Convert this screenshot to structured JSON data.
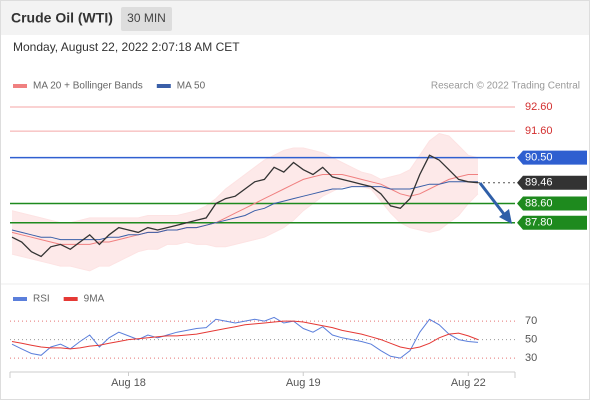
{
  "header": {
    "title": "Crude Oil (WTI)",
    "timeframe": "30 MIN"
  },
  "timestamp": "Monday, August 22, 2022 2:07:18 AM CET",
  "credit": "Research © 2022 Trading Central",
  "chart_data": [
    {
      "type": "line",
      "ylim": [
        85.3,
        93.1
      ],
      "price": {
        "color": "#333333",
        "values": [
          87.2,
          87.0,
          86.6,
          86.4,
          86.8,
          86.9,
          86.7,
          87.0,
          87.3,
          86.9,
          87.3,
          87.6,
          87.5,
          87.4,
          87.6,
          87.5,
          87.6,
          87.7,
          87.8,
          87.9,
          88.0,
          88.6,
          88.8,
          88.9,
          89.2,
          89.5,
          89.6,
          90.1,
          89.9,
          90.3,
          90.0,
          89.8,
          90.1,
          89.7,
          89.6,
          89.5,
          89.4,
          89.3,
          89.0,
          88.5,
          88.4,
          88.8,
          89.8,
          90.6,
          90.4,
          90.0,
          89.6,
          89.5,
          89.46
        ]
      },
      "series": [
        {
          "name": "MA 20 + Bollinger Bands",
          "color": "#f08080",
          "values": [
            87.4,
            87.3,
            87.2,
            87.1,
            87.0,
            86.9,
            86.9,
            86.9,
            86.9,
            87.0,
            87.0,
            87.1,
            87.2,
            87.3,
            87.4,
            87.4,
            87.5,
            87.5,
            87.6,
            87.6,
            87.7,
            87.8,
            88.0,
            88.2,
            88.4,
            88.6,
            88.8,
            89.0,
            89.2,
            89.4,
            89.6,
            89.7,
            89.8,
            89.8,
            89.8,
            89.7,
            89.6,
            89.5,
            89.4,
            89.2,
            89.0,
            88.9,
            89.0,
            89.2,
            89.4,
            89.6,
            89.7,
            89.8,
            89.8
          ]
        },
        {
          "name": "MA 50",
          "color": "#3a5fa8",
          "values": [
            87.5,
            87.4,
            87.3,
            87.2,
            87.2,
            87.1,
            87.1,
            87.1,
            87.1,
            87.1,
            87.2,
            87.2,
            87.3,
            87.3,
            87.4,
            87.4,
            87.5,
            87.5,
            87.6,
            87.6,
            87.7,
            87.8,
            87.9,
            88.0,
            88.1,
            88.3,
            88.4,
            88.6,
            88.7,
            88.8,
            88.9,
            89.0,
            89.1,
            89.2,
            89.2,
            89.3,
            89.3,
            89.3,
            89.3,
            89.2,
            89.2,
            89.2,
            89.3,
            89.4,
            89.4,
            89.5,
            89.5,
            89.5,
            89.5
          ]
        }
      ],
      "bollinger_upper": [
        88.3,
        88.2,
        88.1,
        88.0,
        87.9,
        87.8,
        87.8,
        87.9,
        88.0,
        88.0,
        88.0,
        88.0,
        88.0,
        88.0,
        88.1,
        88.1,
        88.1,
        88.1,
        88.2,
        88.3,
        88.5,
        88.8,
        89.2,
        89.5,
        89.8,
        90.1,
        90.4,
        90.6,
        90.8,
        90.9,
        90.9,
        90.8,
        90.7,
        90.5,
        90.3,
        90.1,
        89.9,
        89.8,
        89.6,
        89.7,
        89.8,
        90.0,
        90.6,
        91.2,
        91.5,
        91.4,
        91.0,
        90.6,
        90.5
      ],
      "bollinger_lower": [
        86.5,
        86.4,
        86.3,
        86.2,
        86.1,
        86.0,
        86.0,
        85.9,
        85.8,
        86.0,
        86.0,
        86.2,
        86.4,
        86.6,
        86.7,
        86.7,
        86.9,
        86.9,
        87.0,
        86.9,
        86.9,
        86.8,
        86.8,
        86.9,
        87.0,
        87.1,
        87.2,
        87.4,
        87.6,
        87.9,
        88.3,
        88.6,
        88.9,
        89.1,
        89.3,
        89.3,
        89.3,
        89.2,
        88.7,
        88.2,
        87.8,
        87.6,
        87.5,
        87.4,
        87.5,
        87.8,
        88.1,
        88.6,
        89.0
      ],
      "band_color": "#fde3e3",
      "levels": [
        {
          "value": 92.6,
          "label": "92.60",
          "color": "#f4a6a6",
          "text_color": "#d32f2f",
          "box": false
        },
        {
          "value": 91.6,
          "label": "91.60",
          "color": "#f4a6a6",
          "text_color": "#d32f2f",
          "box": false
        },
        {
          "value": 90.5,
          "label": "90.50",
          "color": "#2f5fd0",
          "text_color": "#ffffff",
          "box": true
        },
        {
          "value": 89.46,
          "label": "89.46",
          "color": "#333333",
          "text_color": "#ffffff",
          "box": true
        },
        {
          "value": 88.6,
          "label": "88.60",
          "color": "#1e8a1e",
          "text_color": "#ffffff",
          "box": true
        },
        {
          "value": 87.8,
          "label": "87.80",
          "color": "#1e8a1e",
          "text_color": "#ffffff",
          "box": true
        }
      ]
    },
    {
      "type": "line",
      "ylim": [
        15,
        82
      ],
      "yticks": [
        30,
        50,
        70
      ],
      "categories": [
        null,
        null,
        null,
        null,
        null,
        null,
        null,
        null,
        null,
        null,
        null,
        null,
        "Aug 18",
        null,
        null,
        null,
        null,
        null,
        null,
        null,
        null,
        null,
        null,
        null,
        null,
        null,
        null,
        null,
        null,
        null,
        "Aug 19",
        null,
        null,
        null,
        null,
        null,
        null,
        null,
        null,
        null,
        null,
        null,
        null,
        null,
        null,
        null,
        null,
        "Aug 22",
        null
      ],
      "series": [
        {
          "name": "RSI",
          "color": "#5b7fdb",
          "values": [
            45,
            40,
            35,
            33,
            42,
            45,
            40,
            48,
            55,
            42,
            52,
            58,
            54,
            50,
            55,
            52,
            55,
            58,
            60,
            62,
            63,
            72,
            70,
            68,
            70,
            72,
            70,
            74,
            68,
            70,
            62,
            58,
            64,
            55,
            52,
            50,
            48,
            45,
            38,
            32,
            30,
            38,
            58,
            72,
            66,
            56,
            50,
            48,
            47
          ]
        },
        {
          "name": "9MA",
          "color": "#e53935",
          "values": [
            48,
            46,
            44,
            42,
            41,
            41,
            40,
            41,
            43,
            44,
            46,
            48,
            50,
            51,
            52,
            53,
            54,
            54,
            55,
            56,
            58,
            60,
            62,
            64,
            66,
            67,
            68,
            69,
            70,
            70,
            69,
            67,
            65,
            63,
            60,
            58,
            56,
            53,
            50,
            46,
            42,
            40,
            42,
            46,
            52,
            56,
            57,
            54,
            50
          ]
        }
      ]
    }
  ]
}
